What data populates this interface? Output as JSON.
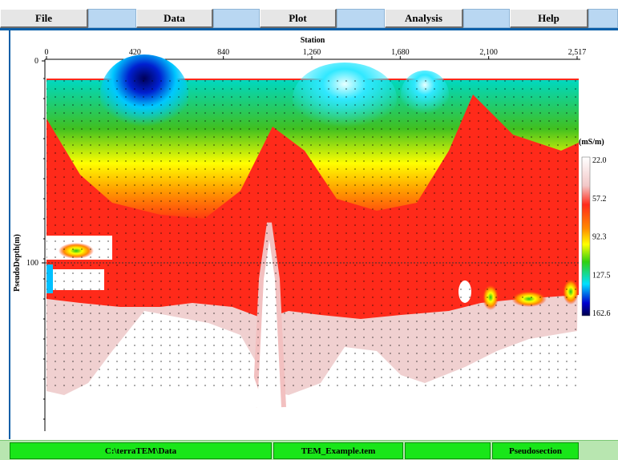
{
  "menu": {
    "file": "File",
    "data": "Data",
    "plot": "Plot",
    "analysis": "Analysis",
    "help": "Help"
  },
  "plot": {
    "x_axis_title": "Station",
    "y_axis_title": "PseudoDepth(m)",
    "x_ticks": [
      "0",
      "420",
      "840",
      "1,260",
      "1,680",
      "2,100",
      "2,517"
    ],
    "y_ticks": [
      "0",
      "100"
    ],
    "colorbar": {
      "unit": "(mS/m)",
      "labels": [
        "22.0",
        "57.2",
        "92.3",
        "127.5",
        "162.6"
      ]
    }
  },
  "chart_data": {
    "type": "heatmap",
    "x_range": [
      0,
      2517
    ],
    "y_range": [
      0,
      175
    ],
    "xlabel": "Station",
    "ylabel": "PseudoDepth(m)",
    "colorbar_range": [
      22.0,
      162.6
    ],
    "colorbar_unit": "mS/m",
    "reference_line_depth": 100
  },
  "status": {
    "path": "C:\\terraTEM\\Data",
    "file": "TEM_Example.tem",
    "blank": "",
    "view": "Pseudosection"
  }
}
